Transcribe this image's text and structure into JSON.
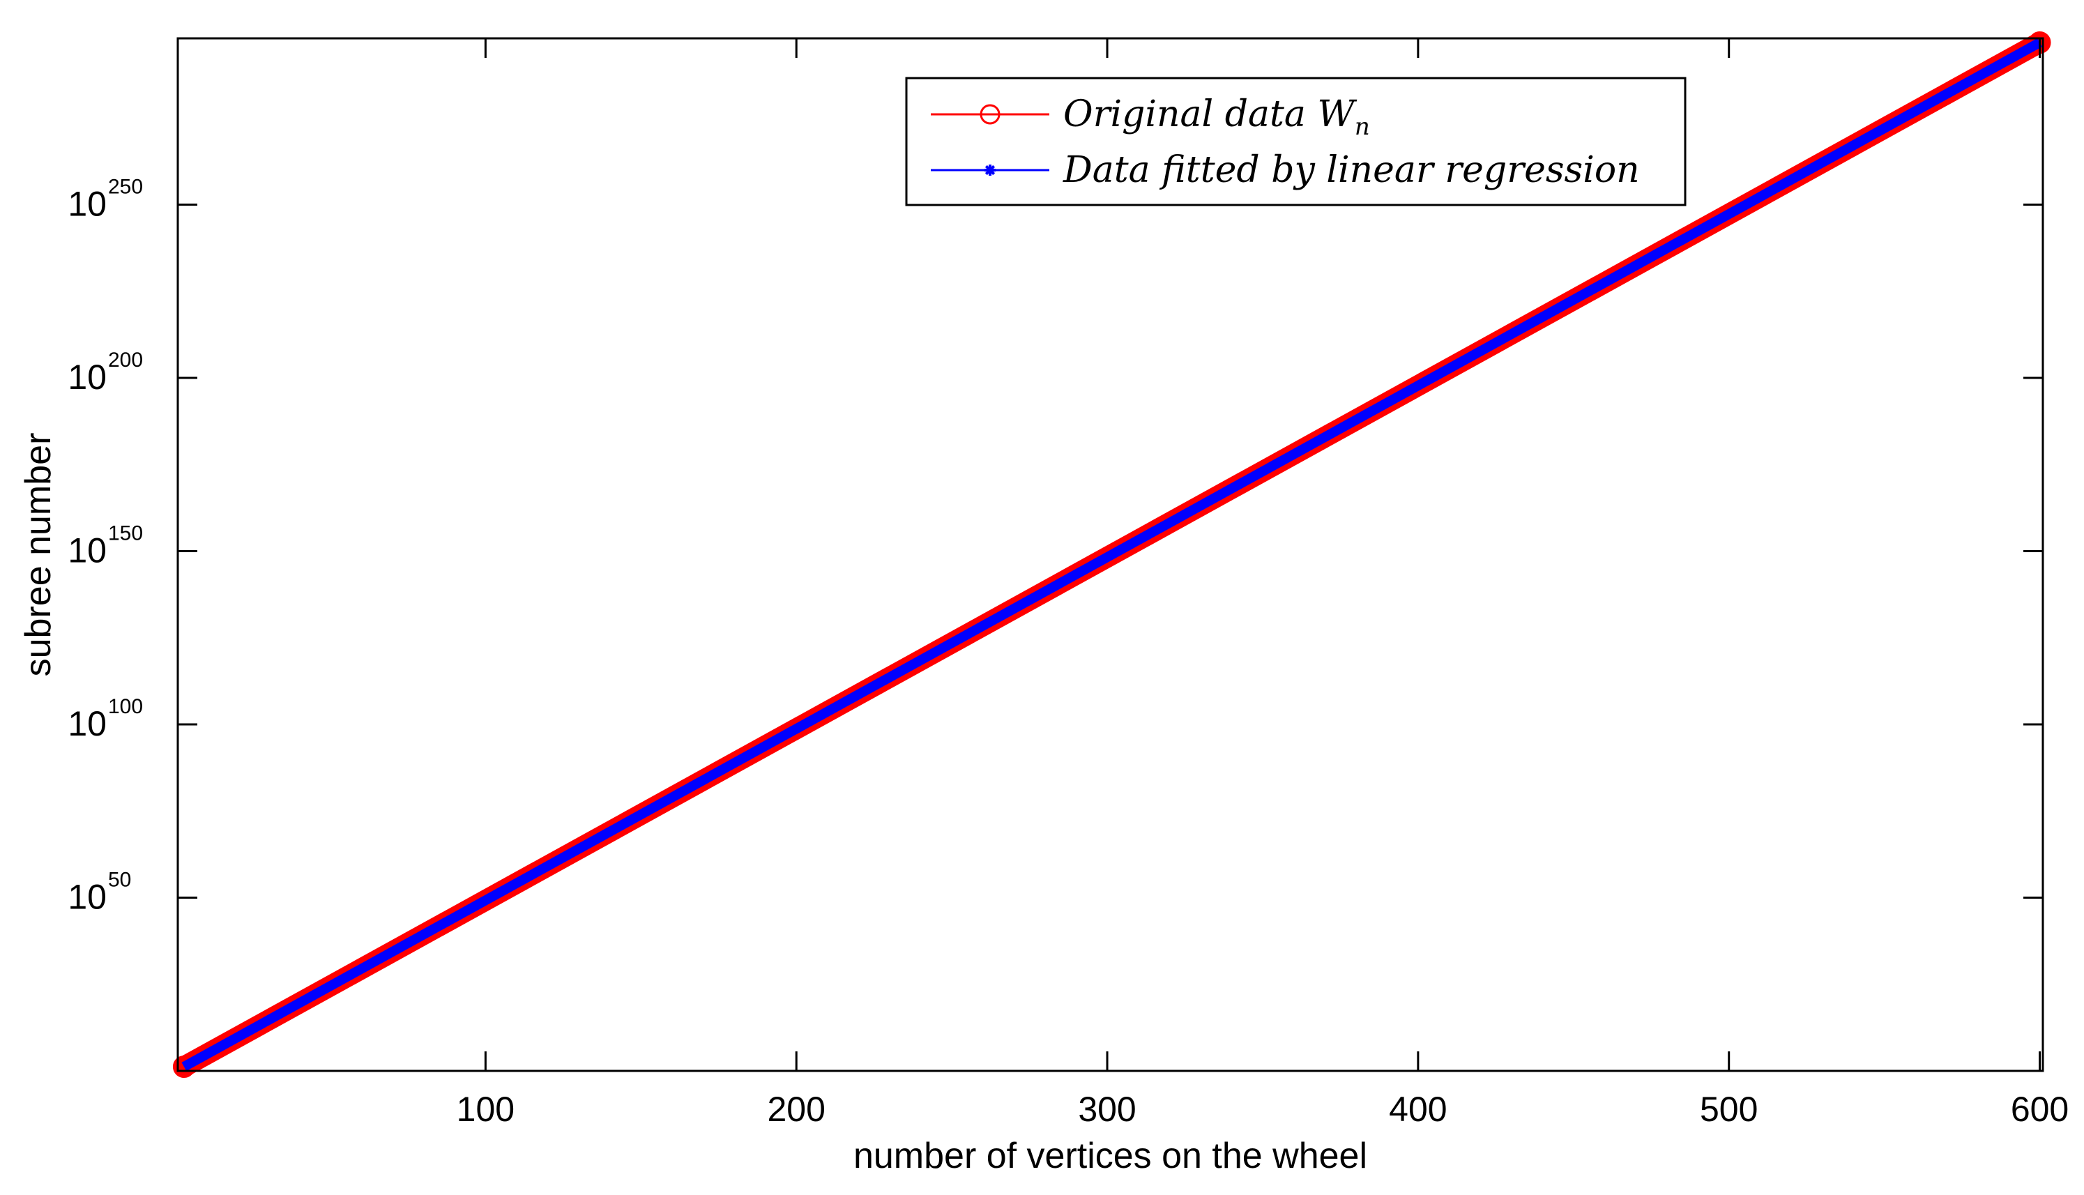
{
  "chart_data": {
    "type": "line",
    "title": "",
    "xlabel": "number of vertices on the wheel",
    "ylabel": "subree number",
    "yscale": "log",
    "xlim": [
      1,
      601
    ],
    "ylim_exponent": [
      0,
      298
    ],
    "x_ticks": [
      100,
      200,
      300,
      400,
      500,
      600
    ],
    "y_ticks": [
      {
        "base": "10",
        "exp": "50",
        "value_exponent": 50
      },
      {
        "base": "10",
        "exp": "100",
        "value_exponent": 100
      },
      {
        "base": "10",
        "exp": "150",
        "value_exponent": 150
      },
      {
        "base": "10",
        "exp": "200",
        "value_exponent": 200
      },
      {
        "base": "10",
        "exp": "250",
        "value_exponent": 250
      }
    ],
    "grid": false,
    "legend_position": "top-center",
    "series": [
      {
        "name": "Original data",
        "name_math": "W",
        "name_sub": "n",
        "color": "#ff0000",
        "marker": "circle",
        "x": [
          3,
          600
        ],
        "log10_y": [
          1.2,
          296.8
        ]
      },
      {
        "name": "Data fitted by linear regression",
        "color": "#0000ff",
        "marker": "star",
        "x": [
          3,
          600
        ],
        "log10_y": [
          1.2,
          296.8
        ]
      }
    ]
  }
}
